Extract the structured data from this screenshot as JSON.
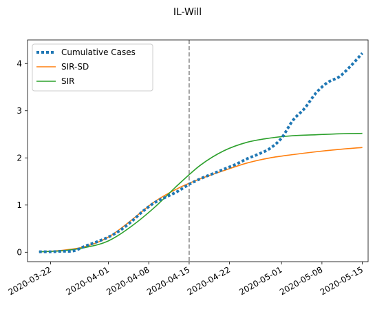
{
  "chart_data": {
    "type": "line",
    "title": "IL-Will",
    "xlabel": "",
    "ylabel": "",
    "x_type": "date",
    "xlim": [
      "2020-03-18",
      "2020-05-16"
    ],
    "ylim": [
      -0.2,
      4.5
    ],
    "xticks": [
      "2020-03-22",
      "2020-04-01",
      "2020-04-08",
      "2020-04-15",
      "2020-04-22",
      "2020-05-01",
      "2020-05-08",
      "2020-05-15"
    ],
    "yticks": [
      0,
      1,
      2,
      3,
      4
    ],
    "grid": false,
    "legend_position": "top-left",
    "vline": {
      "x": "2020-04-15",
      "style": "dashed",
      "color": "#7f7f7f"
    },
    "series": [
      {
        "name": "Cumulative Cases",
        "color": "#1f77b4",
        "style": "dotted",
        "x": [
          "2020-03-20",
          "2020-03-22",
          "2020-03-24",
          "2020-03-26",
          "2020-03-28",
          "2020-03-30",
          "2020-04-01",
          "2020-04-03",
          "2020-04-05",
          "2020-04-07",
          "2020-04-09",
          "2020-04-11",
          "2020-04-13",
          "2020-04-15",
          "2020-04-17",
          "2020-04-19",
          "2020-04-21",
          "2020-04-23",
          "2020-04-25",
          "2020-04-27",
          "2020-04-29",
          "2020-05-01",
          "2020-05-03",
          "2020-05-05",
          "2020-05-07",
          "2020-05-09",
          "2020-05-11",
          "2020-05-13",
          "2020-05-15"
        ],
        "values": [
          0.01,
          0.01,
          0.02,
          0.03,
          0.13,
          0.22,
          0.32,
          0.46,
          0.65,
          0.87,
          1.05,
          1.17,
          1.29,
          1.44,
          1.56,
          1.66,
          1.76,
          1.86,
          1.98,
          2.08,
          2.2,
          2.42,
          2.8,
          3.05,
          3.38,
          3.6,
          3.72,
          3.95,
          4.22
        ]
      },
      {
        "name": "SIR-SD",
        "color": "#ff7f0e",
        "style": "solid",
        "x": [
          "2020-03-20",
          "2020-03-24",
          "2020-03-28",
          "2020-04-01",
          "2020-04-05",
          "2020-04-09",
          "2020-04-13",
          "2020-04-17",
          "2020-04-21",
          "2020-04-25",
          "2020-04-29",
          "2020-05-03",
          "2020-05-07",
          "2020-05-11",
          "2020-05-15"
        ],
        "values": [
          0.01,
          0.04,
          0.12,
          0.32,
          0.68,
          1.07,
          1.35,
          1.56,
          1.73,
          1.89,
          2.0,
          2.07,
          2.13,
          2.18,
          2.22
        ]
      },
      {
        "name": "SIR",
        "color": "#2ca02c",
        "style": "solid",
        "x": [
          "2020-03-20",
          "2020-03-24",
          "2020-03-28",
          "2020-04-01",
          "2020-04-05",
          "2020-04-09",
          "2020-04-13",
          "2020-04-17",
          "2020-04-21",
          "2020-04-25",
          "2020-04-29",
          "2020-05-03",
          "2020-05-07",
          "2020-05-11",
          "2020-05-15"
        ],
        "values": [
          0.01,
          0.03,
          0.1,
          0.24,
          0.55,
          0.95,
          1.42,
          1.85,
          2.15,
          2.33,
          2.42,
          2.47,
          2.49,
          2.51,
          2.52
        ]
      }
    ]
  }
}
